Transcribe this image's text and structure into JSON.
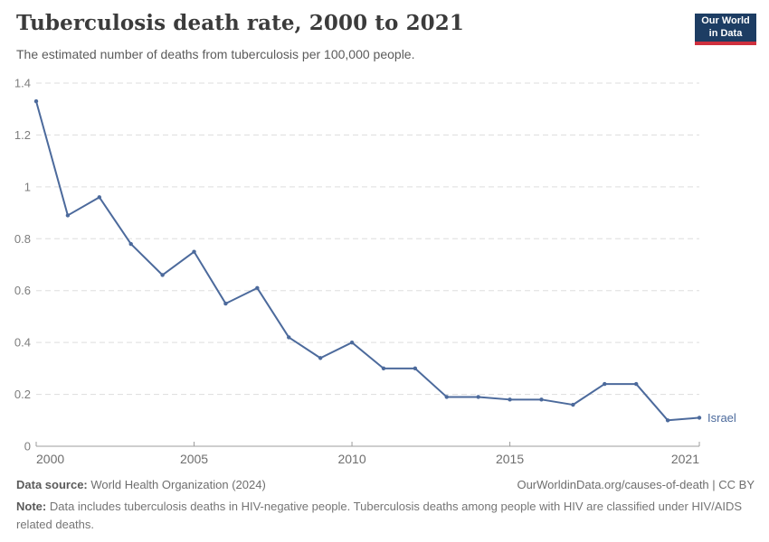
{
  "header": {
    "title": "Tuberculosis death rate, 2000 to 2021",
    "subtitle": "The estimated number of deaths from tuberculosis per 100,000 people.",
    "logo": {
      "line1": "Our World",
      "line2": "in Data"
    }
  },
  "chart_data": {
    "type": "line",
    "title": "Tuberculosis death rate, 2000 to 2021",
    "xlabel": "",
    "ylabel": "",
    "xlim": [
      2000,
      2021
    ],
    "ylim": [
      0,
      1.4
    ],
    "x_ticks": [
      2000,
      2005,
      2010,
      2015,
      2021
    ],
    "y_ticks": [
      0,
      0.2,
      0.4,
      0.6,
      0.8,
      1,
      1.2,
      1.4
    ],
    "grid": "horizontal-dashed",
    "legend_position": "end-of-line-label",
    "x": [
      2000,
      2001,
      2002,
      2003,
      2004,
      2005,
      2006,
      2007,
      2008,
      2009,
      2010,
      2011,
      2012,
      2013,
      2014,
      2015,
      2016,
      2017,
      2018,
      2019,
      2020,
      2021
    ],
    "series": [
      {
        "name": "Israel",
        "color": "#4C6A9C",
        "values": [
          1.33,
          0.89,
          0.96,
          0.78,
          0.66,
          0.75,
          0.55,
          0.61,
          0.42,
          0.34,
          0.4,
          0.3,
          0.3,
          0.19,
          0.19,
          0.18,
          0.18,
          0.16,
          0.24,
          0.24,
          0.1,
          0.11
        ]
      }
    ]
  },
  "footer": {
    "data_source_label": "Data source:",
    "data_source": "World Health Organization (2024)",
    "attribution": "OurWorldinData.org/causes-of-death | CC BY",
    "note_label": "Note:",
    "note": "Data includes tuberculosis deaths in HIV-negative people. Tuberculosis deaths among people with HIV are classified under HIV/AIDS related deaths."
  },
  "colors": {
    "line": "#4C6A9C",
    "grid": "#dddddd",
    "axis": "#9c9c9c",
    "y_tick_label": "#7d7d7d",
    "x_tick_label": "#6e6e6e",
    "logo_bg": "#1d3d63",
    "logo_stripe": "#cf303e",
    "title_text": "#3b3b3b",
    "subtitle_text": "#5b5b5b"
  }
}
